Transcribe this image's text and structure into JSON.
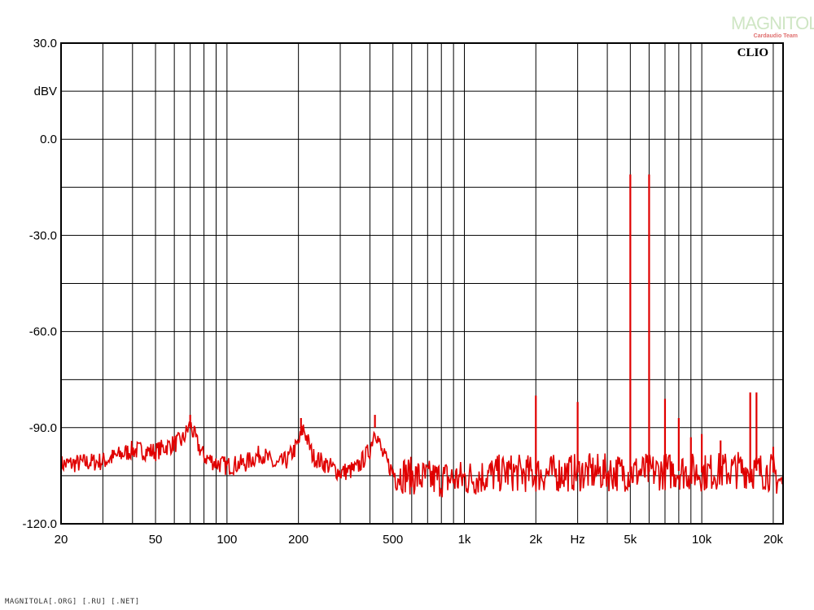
{
  "chart_data": {
    "type": "line",
    "brand": "CLIO",
    "unit_label": "dBV",
    "x_unit_label": "Hz",
    "x_scale": "log",
    "xlim": [
      20,
      22000
    ],
    "ylim": [
      -120,
      30
    ],
    "y_ticks": [
      "30.0",
      "0.0",
      "-30.0",
      "-60.0",
      "-90.0",
      "-120.0"
    ],
    "y_tick_values": [
      30,
      0,
      -30,
      -60,
      -90,
      -120
    ],
    "x_ticks": [
      {
        "v": 20,
        "label": "20"
      },
      {
        "v": 50,
        "label": "50"
      },
      {
        "v": 100,
        "label": "100"
      },
      {
        "v": 200,
        "label": "200"
      },
      {
        "v": 500,
        "label": "500"
      },
      {
        "v": 1000,
        "label": "1k"
      },
      {
        "v": 2000,
        "label": "2k"
      },
      {
        "v": 5000,
        "label": "5k"
      },
      {
        "v": 10000,
        "label": "10k"
      },
      {
        "v": 20000,
        "label": "20k"
      }
    ],
    "grid": true,
    "series": [
      {
        "color": "#e00000",
        "noise_floor_points": [
          [
            20,
            -101.5
          ],
          [
            30,
            -100.5
          ],
          [
            40,
            -97
          ],
          [
            50,
            -97.5
          ],
          [
            55,
            -96
          ],
          [
            60,
            -95
          ],
          [
            65,
            -94
          ],
          [
            70,
            -89
          ],
          [
            75,
            -95
          ],
          [
            80,
            -99
          ],
          [
            90,
            -101
          ],
          [
            100,
            -102
          ],
          [
            120,
            -101
          ],
          [
            140,
            -98
          ],
          [
            160,
            -102
          ],
          [
            180,
            -100
          ],
          [
            200,
            -95
          ],
          [
            210,
            -90
          ],
          [
            230,
            -99
          ],
          [
            300,
            -104
          ],
          [
            350,
            -103
          ],
          [
            400,
            -97
          ],
          [
            420,
            -90
          ],
          [
            450,
            -98
          ],
          [
            500,
            -104
          ],
          [
            700,
            -106
          ],
          [
            1000,
            -106
          ],
          [
            1500,
            -104
          ],
          [
            2000,
            -104.5
          ],
          [
            3000,
            -104
          ],
          [
            5000,
            -104
          ],
          [
            8000,
            -103.5
          ],
          [
            10000,
            -104
          ],
          [
            15000,
            -103
          ],
          [
            20000,
            -104
          ],
          [
            22000,
            -108
          ]
        ],
        "spikes": [
          {
            "f": 70,
            "db": -86
          },
          {
            "f": 205,
            "db": -87
          },
          {
            "f": 420,
            "db": -86
          },
          {
            "f": 2000,
            "db": -80
          },
          {
            "f": 3000,
            "db": -82
          },
          {
            "f": 5000,
            "db": -11
          },
          {
            "f": 6000,
            "db": -11
          },
          {
            "f": 7000,
            "db": -81
          },
          {
            "f": 8000,
            "db": -87
          },
          {
            "f": 9000,
            "db": -93
          },
          {
            "f": 10000,
            "db": -92
          },
          {
            "f": 12000,
            "db": -94
          },
          {
            "f": 16000,
            "db": -79
          },
          {
            "f": 17000,
            "db": -79
          },
          {
            "f": 20000,
            "db": -96
          }
        ]
      }
    ]
  },
  "logo": {
    "main": "MAGNITOLA",
    "sub": "Cardaudio Team"
  },
  "footer": "MAGNITOLA[.ORG] [.RU] [.NET]"
}
